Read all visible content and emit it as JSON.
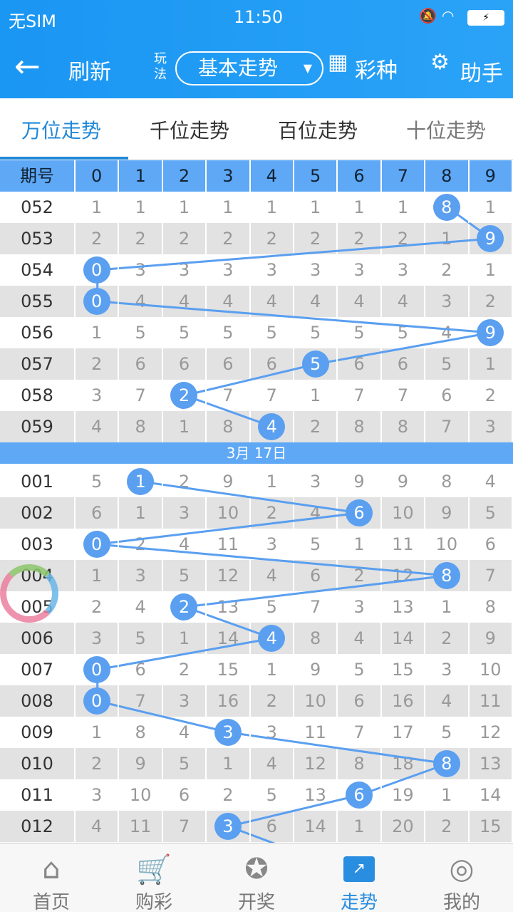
{
  "status": {
    "carrier": "无SIM",
    "time": "11:50"
  },
  "nav": {
    "back_label": "刷新",
    "play_label": "玩法",
    "mode": "基本走势",
    "lottery_label": "彩种",
    "helper_label": "助手"
  },
  "tabs": [
    {
      "label": "万位走势",
      "active": true
    },
    {
      "label": "千位走势"
    },
    {
      "label": "百位走势"
    },
    {
      "label": "十位走势"
    }
  ],
  "table": {
    "headers": [
      "期号",
      "0",
      "1",
      "2",
      "3",
      "4",
      "5",
      "6",
      "7",
      "8",
      "9"
    ],
    "section1": [
      {
        "id": "052",
        "cells": [
          "1",
          "1",
          "1",
          "1",
          "1",
          "1",
          "1",
          "1",
          "8",
          "1"
        ],
        "hit": 8
      },
      {
        "id": "053",
        "cells": [
          "2",
          "2",
          "2",
          "2",
          "2",
          "2",
          "2",
          "2",
          "1",
          "9"
        ],
        "hit": 9
      },
      {
        "id": "054",
        "cells": [
          "0",
          "3",
          "3",
          "3",
          "3",
          "3",
          "3",
          "3",
          "2",
          "1"
        ],
        "hit": 0
      },
      {
        "id": "055",
        "cells": [
          "0",
          "4",
          "4",
          "4",
          "4",
          "4",
          "4",
          "4",
          "3",
          "2"
        ],
        "hit": 0
      },
      {
        "id": "056",
        "cells": [
          "1",
          "5",
          "5",
          "5",
          "5",
          "5",
          "5",
          "5",
          "4",
          "9"
        ],
        "hit": 9
      },
      {
        "id": "057",
        "cells": [
          "2",
          "6",
          "6",
          "6",
          "6",
          "5",
          "6",
          "6",
          "5",
          "1"
        ],
        "hit": 5
      },
      {
        "id": "058",
        "cells": [
          "3",
          "7",
          "2",
          "7",
          "7",
          "1",
          "7",
          "7",
          "6",
          "2"
        ],
        "hit": 2
      },
      {
        "id": "059",
        "cells": [
          "4",
          "8",
          "1",
          "8",
          "4",
          "2",
          "8",
          "8",
          "7",
          "3"
        ],
        "hit": 4
      }
    ],
    "date_label": "3月 17日",
    "section2": [
      {
        "id": "001",
        "cells": [
          "5",
          "1",
          "2",
          "9",
          "1",
          "3",
          "9",
          "9",
          "8",
          "4"
        ],
        "hit": 1
      },
      {
        "id": "002",
        "cells": [
          "6",
          "1",
          "3",
          "10",
          "2",
          "4",
          "6",
          "10",
          "9",
          "5"
        ],
        "hit": 6
      },
      {
        "id": "003",
        "cells": [
          "0",
          "2",
          "4",
          "11",
          "3",
          "5",
          "1",
          "11",
          "10",
          "6"
        ],
        "hit": 0
      },
      {
        "id": "004",
        "cells": [
          "1",
          "3",
          "5",
          "12",
          "4",
          "6",
          "2",
          "12",
          "8",
          "7"
        ],
        "hit": 8
      },
      {
        "id": "005",
        "cells": [
          "2",
          "4",
          "2",
          "13",
          "5",
          "7",
          "3",
          "13",
          "1",
          "8"
        ],
        "hit": 2
      },
      {
        "id": "006",
        "cells": [
          "3",
          "5",
          "1",
          "14",
          "4",
          "8",
          "4",
          "14",
          "2",
          "9"
        ],
        "hit": 4
      },
      {
        "id": "007",
        "cells": [
          "0",
          "6",
          "2",
          "15",
          "1",
          "9",
          "5",
          "15",
          "3",
          "10"
        ],
        "hit": 0
      },
      {
        "id": "008",
        "cells": [
          "0",
          "7",
          "3",
          "16",
          "2",
          "10",
          "6",
          "16",
          "4",
          "11"
        ],
        "hit": 0
      },
      {
        "id": "009",
        "cells": [
          "1",
          "8",
          "4",
          "3",
          "3",
          "11",
          "7",
          "17",
          "5",
          "12"
        ],
        "hit": 3
      },
      {
        "id": "010",
        "cells": [
          "2",
          "9",
          "5",
          "1",
          "4",
          "12",
          "8",
          "18",
          "8",
          "13"
        ],
        "hit": 8
      },
      {
        "id": "011",
        "cells": [
          "3",
          "10",
          "6",
          "2",
          "5",
          "13",
          "6",
          "19",
          "1",
          "14"
        ],
        "hit": 6
      },
      {
        "id": "012",
        "cells": [
          "4",
          "11",
          "7",
          "3",
          "6",
          "14",
          "1",
          "20",
          "2",
          "15"
        ],
        "hit": 3
      }
    ]
  },
  "bottom_nav": [
    {
      "label": "首页",
      "icon": "home-icon"
    },
    {
      "label": "购彩",
      "icon": "cart-icon"
    },
    {
      "label": "开奖",
      "icon": "award-icon"
    },
    {
      "label": "走势",
      "icon": "trend-icon",
      "active": true
    },
    {
      "label": "我的",
      "icon": "user-icon"
    }
  ],
  "colors": {
    "primary": "#1a96f3",
    "hit": "#5a9ff0",
    "active": "#2188d8"
  }
}
